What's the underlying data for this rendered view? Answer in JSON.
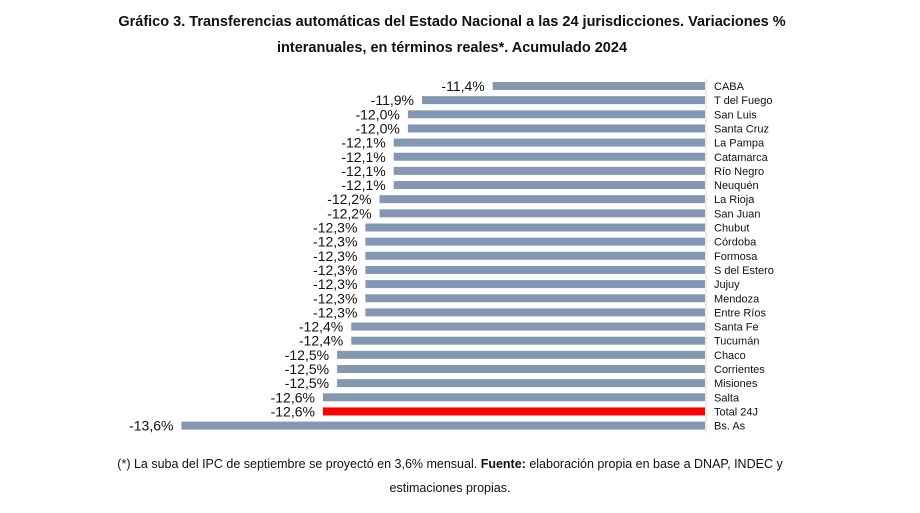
{
  "title_line1": "Gráfico 3. Transferencias automáticas del Estado Nacional a las 24 jurisdicciones. Variaciones %",
  "title_line2": "interanuales, en términos reales*. Acumulado 2024",
  "footnote": {
    "part1": "(*) La suba del IPC de septiembre se proyectó en 3,6% mensual. ",
    "bold": "Fuente:",
    "part2": " elaboración propia en base a DNAP, INDEC y",
    "line2": "estimaciones propias."
  },
  "colors": {
    "bar": "#8497b0",
    "highlight": "#ff0000",
    "axis": "#d9d9d9"
  },
  "chart_data": {
    "type": "bar",
    "orientation": "horizontal",
    "title": "Gráfico 3. Transferencias automáticas del Estado Nacional a las 24 jurisdicciones. Variaciones % interanuales, en términos reales*. Acumulado 2024",
    "categories": [
      "CABA",
      "T del Fuego",
      "San Luis",
      "Santa Cruz",
      "La Pampa",
      "Catamarca",
      "Río Negro",
      "Neuquén",
      "La Rioja",
      "San Juan",
      "Chubut",
      "Córdoba",
      "Formosa",
      "S del Estero",
      "Jujuy",
      "Mendoza",
      "Entre Ríos",
      "Santa Fe",
      "Tucumán",
      "Chaco",
      "Corrientes",
      "Misiones",
      "Salta",
      "Total 24J",
      "Bs. As"
    ],
    "values": [
      -11.4,
      -11.9,
      -12.0,
      -12.0,
      -12.1,
      -12.1,
      -12.1,
      -12.1,
      -12.2,
      -12.2,
      -12.3,
      -12.3,
      -12.3,
      -12.3,
      -12.3,
      -12.3,
      -12.3,
      -12.4,
      -12.4,
      -12.5,
      -12.5,
      -12.5,
      -12.6,
      -12.6,
      -13.6
    ],
    "labels": [
      "-11,4%",
      "-11,9%",
      "-12,0%",
      "-12,0%",
      "-12,1%",
      "-12,1%",
      "-12,1%",
      "-12,1%",
      "-12,2%",
      "-12,2%",
      "-12,3%",
      "-12,3%",
      "-12,3%",
      "-12,3%",
      "-12,3%",
      "-12,3%",
      "-12,3%",
      "-12,4%",
      "-12,4%",
      "-12,5%",
      "-12,5%",
      "-12,5%",
      "-12,6%",
      "-12,6%",
      "-13,6%"
    ],
    "highlight": "Total 24J",
    "xlabel": "",
    "ylabel": "",
    "grid": false
  }
}
